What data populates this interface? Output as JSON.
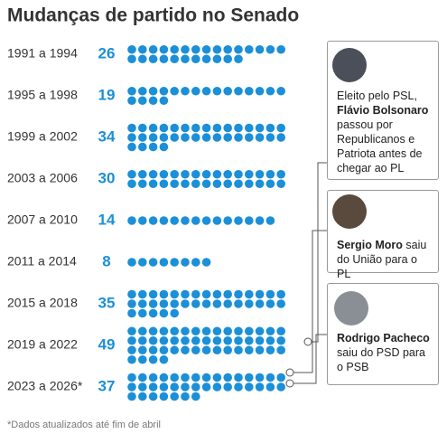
{
  "chart_data": {
    "type": "dot",
    "title": "Mudanças de partido no Senado",
    "categories": [
      "1991 a 1994",
      "1995 a 1998",
      "1999 a 2002",
      "2003 a 2006",
      "2007 a 2010",
      "2011 a 2014",
      "2015 a 2018",
      "2019 a 2022",
      "2023 a 2026*"
    ],
    "values": [
      26,
      19,
      34,
      30,
      14,
      8,
      35,
      49,
      37
    ],
    "color": "#1b8fd8",
    "annotations": [
      {
        "before": "Eleito pelo PSL,",
        "name": "Flávio Bolsonaro",
        "after": "passou por Republicanos e Patriota antes de chegar ao PL"
      },
      {
        "before": null,
        "name": "Sergio Moro",
        "after": "saiu do União para o PL"
      },
      {
        "before": null,
        "name": "Rodrigo Pacheco",
        "after": "saiu do PSD para o PSB"
      }
    ],
    "footnote": "*Dados atualizados até fim de abril"
  }
}
